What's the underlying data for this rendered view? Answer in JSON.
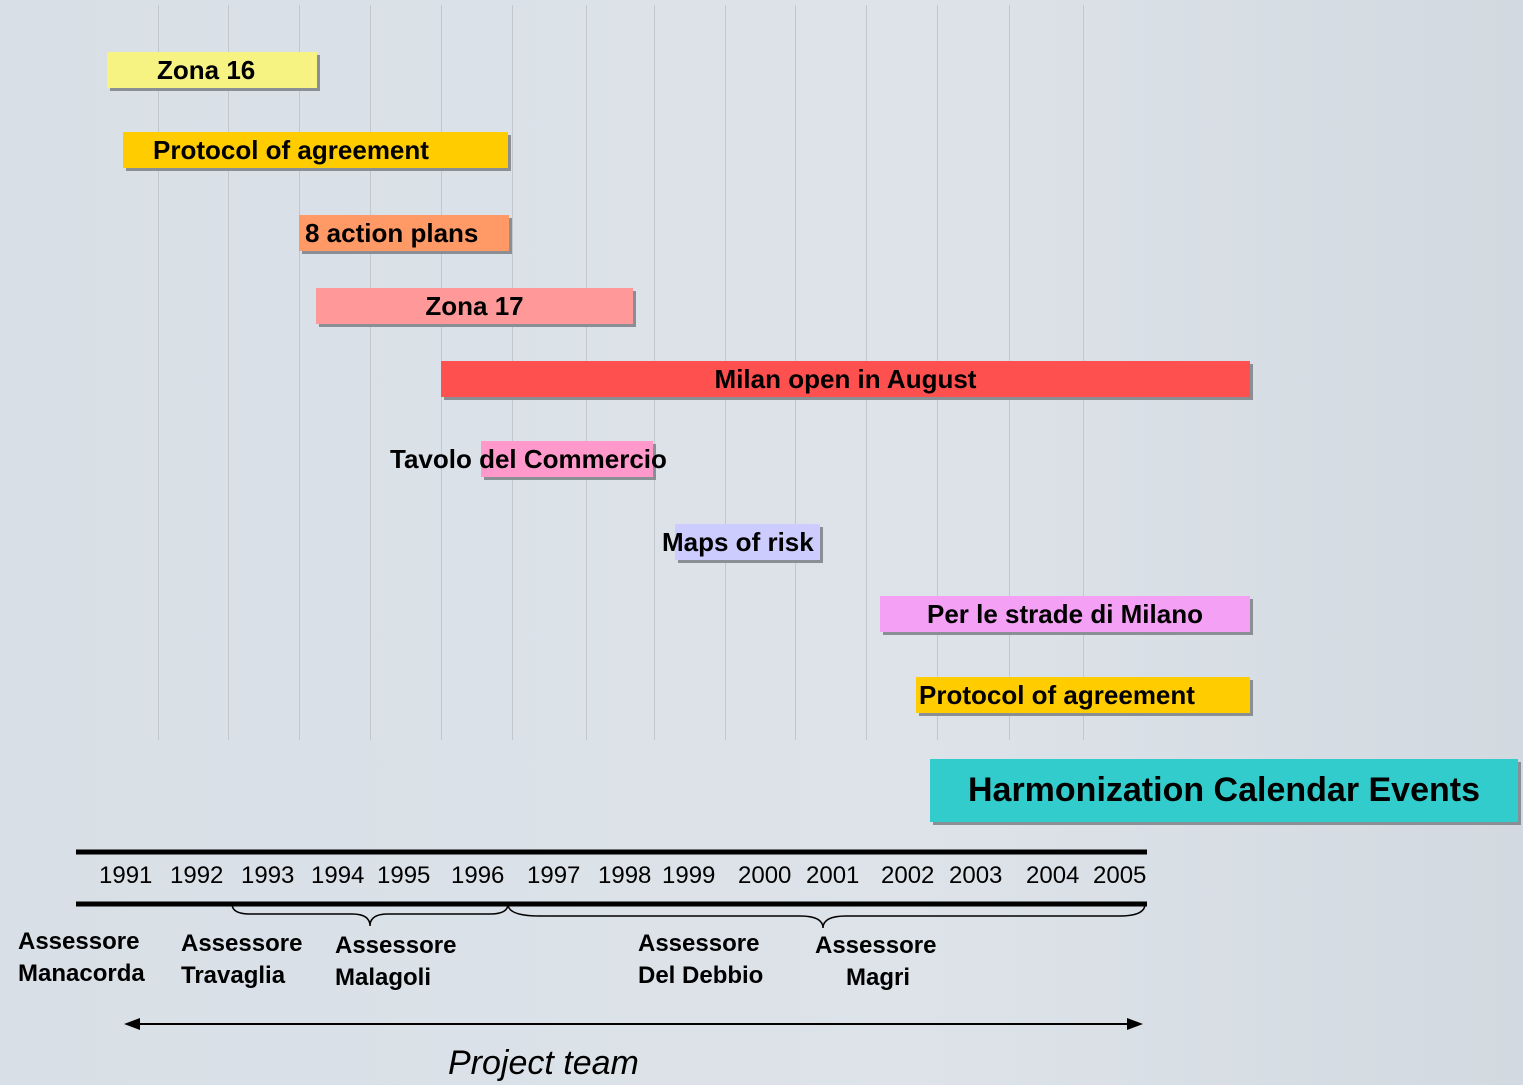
{
  "bars": [
    {
      "label": "Zona 16"
    },
    {
      "label": "Protocol of agreement"
    },
    {
      "label": "8 action plans"
    },
    {
      "label": "Zona 17"
    },
    {
      "label": "Milan open in August"
    },
    {
      "label": "Tavolo del Commercio"
    },
    {
      "label": "Maps of risk"
    },
    {
      "label": "Per le strade di Milano"
    },
    {
      "label": "Protocol of agreement"
    }
  ],
  "highlight": "Harmonization Calendar Events",
  "years": [
    "1991",
    "1992",
    "1993",
    "1994",
    "1995",
    "1996",
    "1997",
    "1998",
    "1999",
    "2000",
    "2001",
    "2002",
    "2003",
    "2004",
    "2005"
  ],
  "assessori": [
    {
      "lines": [
        "Assessore",
        "Manacorda"
      ]
    },
    {
      "lines": [
        "Assessore",
        "Travaglia"
      ]
    },
    {
      "lines": [
        "Assessore",
        "Malagoli"
      ]
    },
    {
      "lines": [
        "Assessore",
        "Del Debbio"
      ]
    },
    {
      "lines": [
        "Assessore",
        "Magri"
      ]
    }
  ],
  "footer": "Project team"
}
